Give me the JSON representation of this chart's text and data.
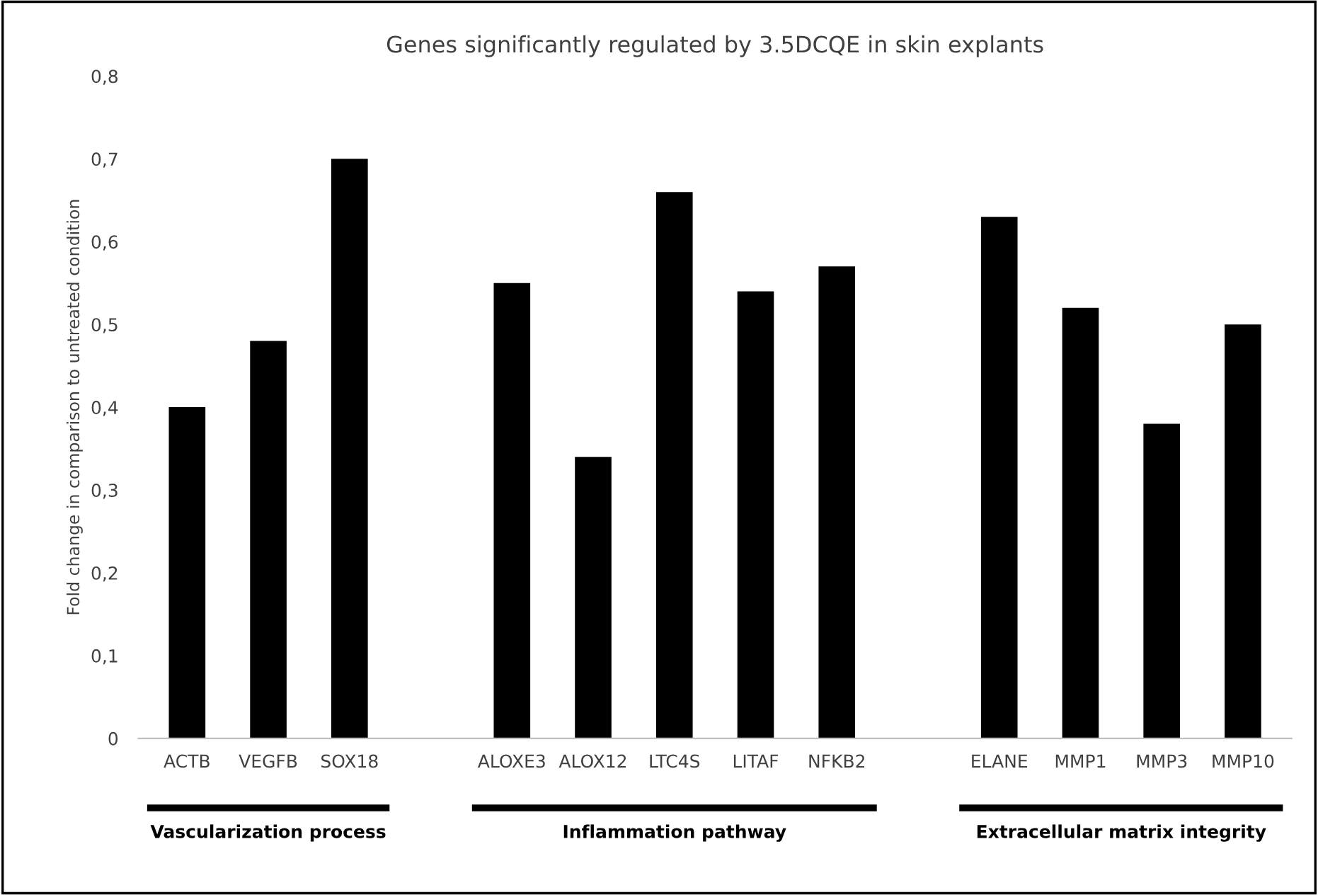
{
  "chart_data": {
    "type": "bar",
    "title": "Genes significantly regulated by 3.5DCQE in skin explants",
    "ylabel": "Fold change in comparison to untreated condition",
    "categories": [
      "ACTB",
      "VEGFB",
      "SOX18",
      null,
      "ALOXE3",
      "ALOX12",
      "LTC4S",
      "LITAF",
      "NFKB2",
      null,
      "ELANE",
      "MMP1",
      "MMP3",
      "MMP10"
    ],
    "values": [
      0.4,
      0.48,
      0.7,
      null,
      0.55,
      0.34,
      0.66,
      0.54,
      0.57,
      null,
      0.63,
      0.52,
      0.38,
      0.5
    ],
    "color": "#000000",
    "ylim": [
      0,
      0.8
    ],
    "yticks": [
      0,
      {
        "value": 0.1,
        "label": "0,1"
      },
      {
        "value": 0.2,
        "label": "0,2"
      },
      {
        "value": 0.3,
        "label": "0,3"
      },
      {
        "value": 0.4,
        "label": "0,4"
      },
      {
        "value": 0.5,
        "label": "0,5"
      },
      {
        "value": 0.6,
        "label": "0,6"
      },
      {
        "value": 0.7,
        "label": "0,7"
      },
      {
        "value": 0.8,
        "label": "0,8"
      }
    ],
    "grid": false,
    "annotations": [
      "Vascularization process",
      "Inflammation pathway",
      "Extracellular matrix integrity"
    ]
  }
}
